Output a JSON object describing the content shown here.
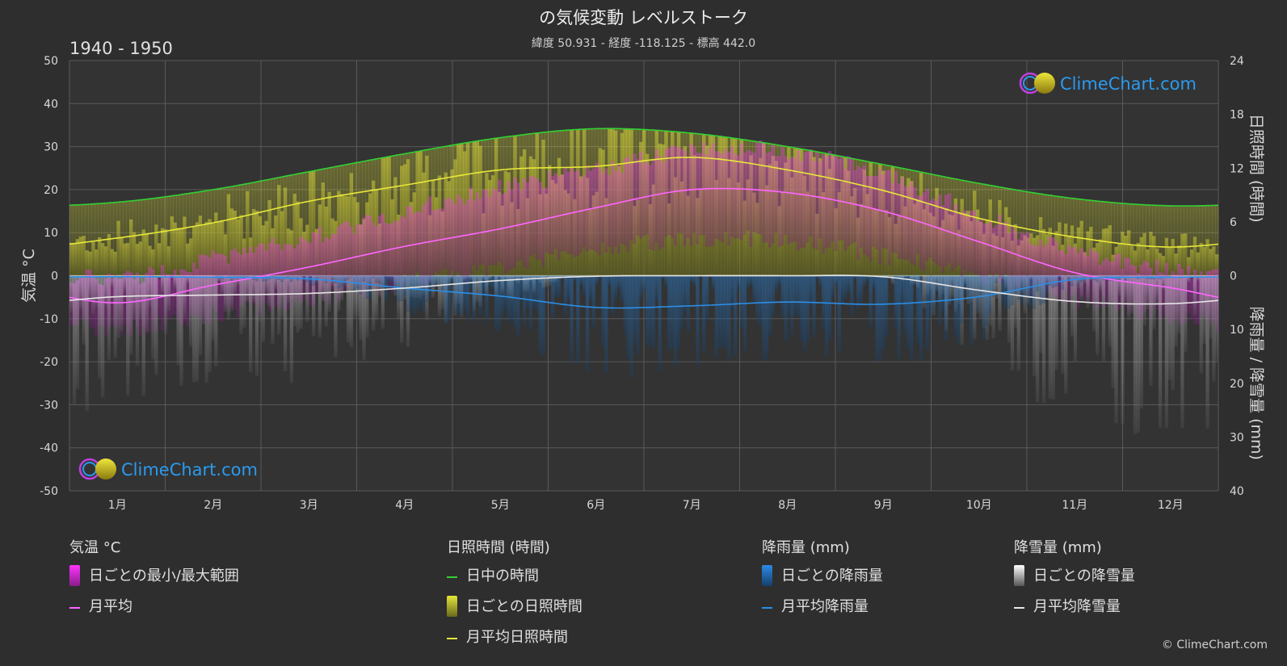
{
  "title": "の気候変動 レベルストーク",
  "subtitle": "緯度 50.931 - 経度 -118.125 - 標高 442.0",
  "period": "1940 - 1950",
  "copyright": "© ClimeChart.com",
  "logo_text": "ClimeChart.com",
  "colors": {
    "background": "#2e2e2e",
    "daylight": "#33d133",
    "sunshine_line": "#e8e83a",
    "temp_line": "#ff66ff",
    "rain_line": "#2b8fe8",
    "snow_line": "#e6e6e6",
    "temp_band": "#d633c8",
    "sunshine_band": "#9a9a2a",
    "rain_bars": "#2a78c8",
    "snow_bars": "#8a8a8a"
  },
  "legend": {
    "temp": {
      "heading": "気温 °C",
      "range": "日ごとの最小/最大範囲",
      "mean": "月平均"
    },
    "sun": {
      "heading": "日照時間 (時間)",
      "daylight": "日中の時間",
      "daily": "日ごとの日照時間",
      "mean": "月平均日照時間"
    },
    "rain": {
      "heading": "降雨量 (mm)",
      "daily": "日ごとの降雨量",
      "mean": "月平均降雨量"
    },
    "snow": {
      "heading": "降雪量 (mm)",
      "daily": "日ごとの降雪量",
      "mean": "月平均降雪量"
    }
  },
  "chart_data": {
    "type": "line",
    "months": [
      "1月",
      "2月",
      "3月",
      "4月",
      "5月",
      "6月",
      "7月",
      "8月",
      "9月",
      "10月",
      "11月",
      "12月"
    ],
    "y_left": {
      "label": "気温 °C",
      "range": [
        -50,
        50
      ],
      "ticks": [
        50,
        40,
        30,
        20,
        10,
        0,
        -10,
        -20,
        -30,
        -40,
        -50
      ]
    },
    "y_right_top": {
      "label": "日照時間 (時間)",
      "range": [
        0,
        24
      ],
      "ticks": [
        24,
        18,
        12,
        6,
        0
      ]
    },
    "y_right_bottom": {
      "label": "降雨量 / 降雪量 (mm)",
      "range": [
        0,
        40
      ],
      "ticks": [
        0,
        10,
        20,
        30,
        40
      ]
    },
    "grid": true,
    "series": [
      {
        "name": "日中の時間",
        "axis": "sunshine_hours",
        "values": [
          8.2,
          9.6,
          11.6,
          13.6,
          15.4,
          16.4,
          15.9,
          14.4,
          12.4,
          10.3,
          8.6,
          7.8
        ]
      },
      {
        "name": "月平均日照時間",
        "axis": "sunshine_hours",
        "values": [
          4.2,
          5.9,
          8.3,
          10.1,
          11.8,
          12.2,
          13.2,
          11.8,
          9.5,
          6.4,
          4.3,
          3.2
        ]
      },
      {
        "name": "月平均",
        "axis": "temperature_c",
        "values": [
          -6.3,
          -2.2,
          2.0,
          6.8,
          10.9,
          15.8,
          20.0,
          19.3,
          15.0,
          7.9,
          0.7,
          -2.8
        ]
      },
      {
        "name": "月平均降雨量",
        "axis": "precip_mm",
        "values": [
          0.2,
          0.3,
          0.6,
          2.3,
          3.8,
          5.9,
          5.6,
          4.9,
          5.3,
          3.9,
          0.7,
          0.3
        ]
      },
      {
        "name": "月平均降雪量",
        "axis": "precip_mm",
        "values": [
          3.9,
          3.6,
          3.3,
          2.3,
          0.9,
          0.1,
          0.0,
          0.0,
          0.2,
          2.7,
          4.8,
          5.2
        ]
      }
    ],
    "temp_daily_range": {
      "min": [
        -10.5,
        -7.0,
        -3.5,
        0.5,
        4.0,
        8.0,
        10.5,
        10.0,
        6.5,
        2.0,
        -3.5,
        -7.5
      ],
      "max": [
        -2.5,
        2.0,
        7.0,
        13.0,
        18.5,
        22.5,
        27.5,
        27.0,
        21.5,
        12.0,
        3.5,
        -0.5
      ]
    }
  }
}
